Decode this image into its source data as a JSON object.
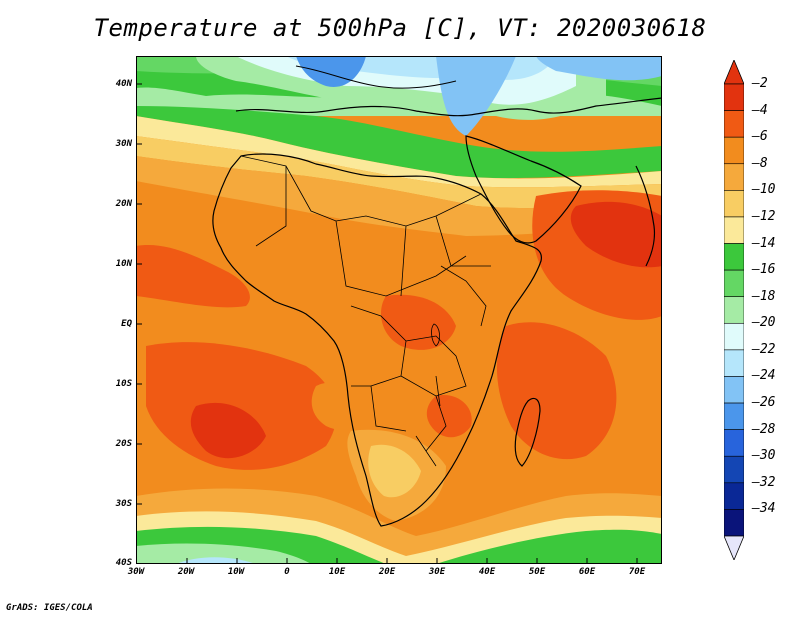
{
  "title": "Temperature at 500hPa [C], VT: 2020030618",
  "credit": "GrADS: IGES/COLA",
  "map": {
    "lat_labels": [
      "40N",
      "30N",
      "20N",
      "10N",
      "EQ",
      "10S",
      "20S",
      "30S",
      "40S"
    ],
    "lon_labels": [
      "30W",
      "20W",
      "10W",
      "0",
      "10E",
      "20E",
      "30E",
      "40E",
      "50E",
      "60E",
      "70E"
    ],
    "variable": "Temperature at 500hPa",
    "units": "C",
    "valid_time": "2020030618"
  },
  "colorbar": {
    "labels": [
      "-2",
      "-4",
      "-6",
      "-8",
      "-10",
      "-12",
      "-14",
      "-16",
      "-18",
      "-20",
      "-22",
      "-24",
      "-26",
      "-28",
      "-30",
      "-32",
      "-34"
    ],
    "colors": [
      "#e2330f",
      "#f05a14",
      "#f28c1e",
      "#f5a93c",
      "#f8cd63",
      "#fbe99a",
      "#3cc83c",
      "#64d764",
      "#a5eba5",
      "#e0fbfb",
      "#b5e6fb",
      "#82c3f5",
      "#4b96eb",
      "#2864dc",
      "#1446b4",
      "#0a2896",
      "#0a147a"
    ],
    "top_arrow_color": "#e2330f",
    "bottom_arrow_color": "#e6e6fa"
  }
}
